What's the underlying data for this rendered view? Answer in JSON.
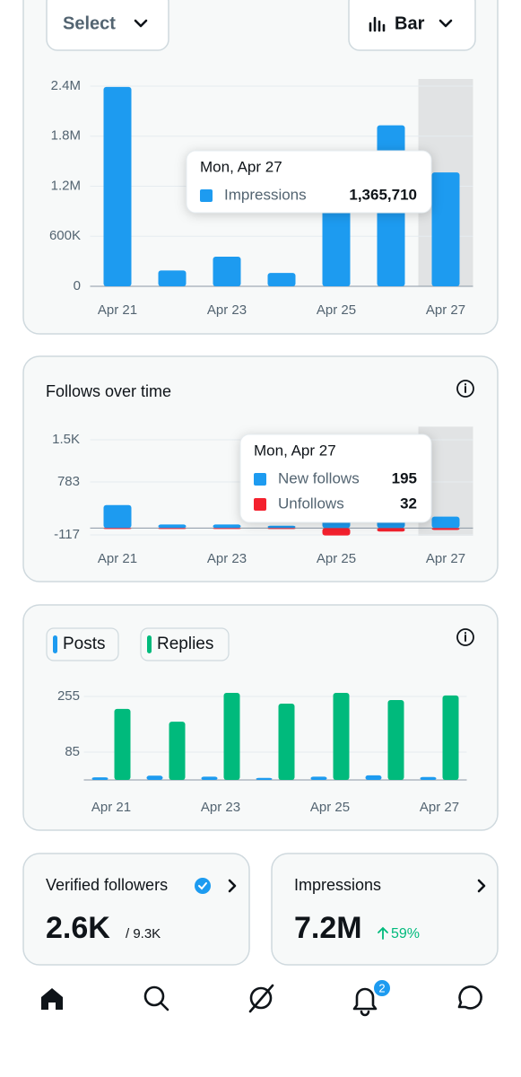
{
  "controls": {
    "select": "Select",
    "chart_type": "Bar"
  },
  "chart_data": [
    {
      "type": "bar",
      "categories": [
        "Apr 21",
        null,
        "Apr 23",
        null,
        "Apr 25",
        null,
        "Apr 27"
      ],
      "series": [
        {
          "name": "Impressions",
          "color": "#1d9bf0",
          "values": [
            2390000,
            190000,
            355000,
            160000,
            1000000,
            1930000,
            1365710
          ],
          "value_labels": [
            null,
            null,
            null,
            null,
            null,
            null,
            "1,365,710"
          ]
        }
      ],
      "ylim": [
        0,
        2400000
      ],
      "yticks": [
        0,
        {
          "value": 600000,
          "label": "600K"
        },
        {
          "value": 1200000,
          "label": "1.2M"
        },
        {
          "value": 1800000,
          "label": "1.8M"
        },
        {
          "value": 2400000,
          "label": "2.4M"
        }
      ],
      "grid": true,
      "highlight": 6,
      "tooltip_title": "Mon, Apr 27"
    },
    {
      "type": "bar",
      "title": "Follows over time",
      "categories": [
        "Apr 21",
        null,
        "Apr 23",
        null,
        "Apr 25",
        null,
        "Apr 27"
      ],
      "series": [
        {
          "name": "New follows",
          "color": "#1d9bf0",
          "values": [
            390,
            60,
            60,
            40,
            1550,
            250,
            195
          ],
          "value_labels": [
            null,
            null,
            null,
            null,
            null,
            null,
            "195"
          ]
        },
        {
          "name": "Unfollows",
          "color": "#f4212e",
          "values": [
            -15,
            -10,
            -10,
            -12,
            -125,
            -60,
            -32
          ],
          "value_labels": [
            null,
            null,
            null,
            null,
            null,
            null,
            "32"
          ]
        }
      ],
      "ylim": [
        -130,
        1600
      ],
      "yticks": [
        -117,
        783,
        {
          "value": 1500,
          "label": "1.5K"
        }
      ],
      "grid": true,
      "highlight": 6,
      "tooltip_title": "Mon, Apr 27"
    },
    {
      "type": "bar",
      "categories": [
        "Apr 21",
        null,
        "Apr 23",
        null,
        "Apr 25",
        null,
        "Apr 27"
      ],
      "series": [
        {
          "name": "Posts",
          "color": "#1d9bf0",
          "values": [
            8,
            13,
            10,
            6,
            10,
            14,
            9
          ]
        },
        {
          "name": "Replies",
          "color": "#00ba7c",
          "values": [
            217,
            178,
            266,
            233,
            266,
            244,
            258
          ]
        }
      ],
      "ylim": [
        0,
        277
      ],
      "yticks": [
        85,
        255
      ],
      "grid": true,
      "grouped": true,
      "legend": "top-left"
    }
  ],
  "cards": [
    {
      "label": "Verified followers",
      "value": "2.6K",
      "total": "/ 9.3K"
    },
    {
      "label": "Impressions",
      "value": "7.2M",
      "change": "59%"
    }
  ],
  "nav": {
    "notifications_badge": "2"
  }
}
